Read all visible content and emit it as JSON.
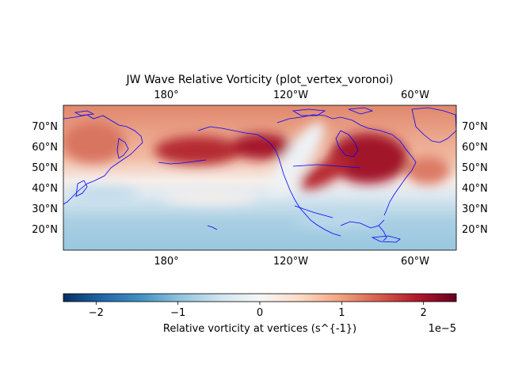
{
  "chart_data": {
    "type": "heatmap",
    "title": "JW Wave Relative Vorticity (plot_vertex_voronoi)",
    "map": {
      "lon_range": [
        -217,
        -31
      ],
      "lat_range": [
        10,
        79
      ],
      "top_lon_ticks": [
        "180°",
        "120°W",
        "60°W"
      ],
      "bottom_lon_ticks": [
        "180°",
        "120°W",
        "60°W"
      ],
      "lat_ticks": [
        "70°N",
        "60°N",
        "50°N",
        "40°N",
        "30°N",
        "20°N"
      ],
      "coastline_color": "#0000ff",
      "colormap": "RdBu_r"
    },
    "field": {
      "description_values_at": "vertices",
      "positive_centers": [
        {
          "lon": -195,
          "lat": 62,
          "value": 2.0
        },
        {
          "lon": -135,
          "lat": 63,
          "value": 2.2
        },
        {
          "lon": -80,
          "lat": 56,
          "value": 2.3
        },
        {
          "lon": -100,
          "lat": 40,
          "value": 1.8
        }
      ],
      "background_high_lat": 1.0,
      "background_low_lat": -0.7
    },
    "colorbar": {
      "label": "Relative vorticity at vertices (s^{-1})",
      "ticks": [
        "−2",
        "−1",
        "0",
        "1",
        "2"
      ],
      "tick_values": [
        -2,
        -1,
        0,
        1,
        2
      ],
      "vmin": -2.4,
      "vmax": 2.4,
      "offset_text": "1e−5"
    }
  }
}
